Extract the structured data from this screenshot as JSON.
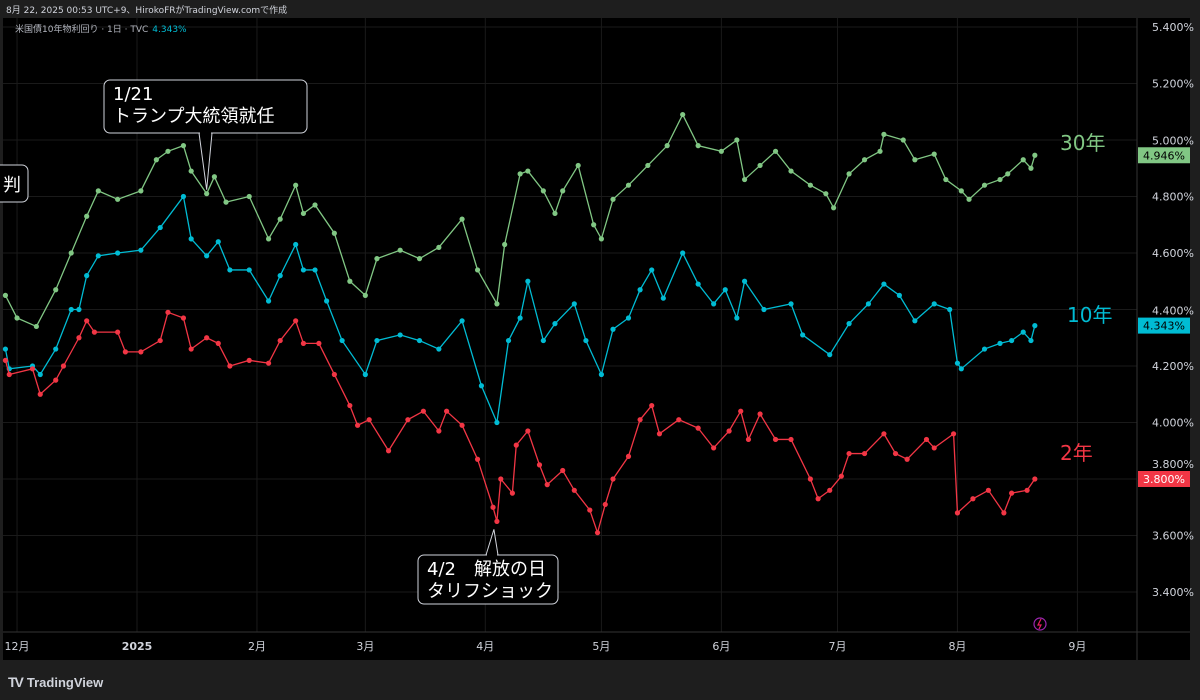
{
  "header": {
    "caption": "8月 22, 2025 00:53 UTC+9、HirokoFRがTradingView.comで作成"
  },
  "legend": {
    "symbol": "米国債10年物利回り · 1日 · TVC",
    "value": "4.343%"
  },
  "footer": {
    "brand": "TradingView",
    "logo_mark": "TV"
  },
  "icons": {
    "lightning": "lightning-icon"
  },
  "colors": {
    "y30": "#81c784",
    "y10": "#00bcd4",
    "y2": "#f23645",
    "background": "#000000",
    "grid": "#1a1a1a"
  },
  "chart_data": {
    "type": "line",
    "title": "",
    "ylim": [
      3.3,
      5.45
    ],
    "y_ticks": [
      "5.400%",
      "5.200%",
      "5.000%",
      "4.800%",
      "4.600%",
      "4.400%",
      "4.200%",
      "4.000%",
      "3.800%",
      "3.600%",
      "3.400%"
    ],
    "y_tick_values": [
      5.4,
      5.2,
      5.0,
      4.8,
      4.6,
      4.4,
      4.2,
      4.0,
      3.8,
      3.6,
      3.4
    ],
    "x_ticks": [
      {
        "label": "12月",
        "date": "2024-12-01"
      },
      {
        "label": "2025",
        "date": "2025-01-01"
      },
      {
        "label": "2月",
        "date": "2025-02-01"
      },
      {
        "label": "3月",
        "date": "2025-03-01"
      },
      {
        "label": "4月",
        "date": "2025-04-01"
      },
      {
        "label": "5月",
        "date": "2025-05-01"
      },
      {
        "label": "6月",
        "date": "2025-06-01"
      },
      {
        "label": "7月",
        "date": "2025-07-01"
      },
      {
        "label": "8月",
        "date": "2025-08-01"
      },
      {
        "label": "9月",
        "date": "2025-09-01"
      }
    ],
    "grid": true,
    "series": [
      {
        "name": "30年",
        "color": "#81c784",
        "last_value": "4.946%",
        "points": [
          [
            "2024-11-28",
            4.45
          ],
          [
            "2024-12-01",
            4.37
          ],
          [
            "2024-12-06",
            4.34
          ],
          [
            "2024-12-11",
            4.47
          ],
          [
            "2024-12-15",
            4.6
          ],
          [
            "2024-12-19",
            4.73
          ],
          [
            "2024-12-22",
            4.82
          ],
          [
            "2024-12-27",
            4.79
          ],
          [
            "2025-01-02",
            4.82
          ],
          [
            "2025-01-06",
            4.93
          ],
          [
            "2025-01-09",
            4.96
          ],
          [
            "2025-01-13",
            4.98
          ],
          [
            "2025-01-15",
            4.89
          ],
          [
            "2025-01-19",
            4.81
          ],
          [
            "2025-01-21",
            4.87
          ],
          [
            "2025-01-24",
            4.78
          ],
          [
            "2025-01-30",
            4.8
          ],
          [
            "2025-02-04",
            4.65
          ],
          [
            "2025-02-07",
            4.72
          ],
          [
            "2025-02-11",
            4.84
          ],
          [
            "2025-02-13",
            4.74
          ],
          [
            "2025-02-16",
            4.77
          ],
          [
            "2025-02-21",
            4.67
          ],
          [
            "2025-02-25",
            4.5
          ],
          [
            "2025-03-01",
            4.45
          ],
          [
            "2025-03-04",
            4.58
          ],
          [
            "2025-03-10",
            4.61
          ],
          [
            "2025-03-15",
            4.58
          ],
          [
            "2025-03-20",
            4.62
          ],
          [
            "2025-03-26",
            4.72
          ],
          [
            "2025-03-30",
            4.54
          ],
          [
            "2025-04-04",
            4.42
          ],
          [
            "2025-04-06",
            4.63
          ],
          [
            "2025-04-10",
            4.88
          ],
          [
            "2025-04-12",
            4.89
          ],
          [
            "2025-04-16",
            4.82
          ],
          [
            "2025-04-19",
            4.74
          ],
          [
            "2025-04-21",
            4.82
          ],
          [
            "2025-04-25",
            4.91
          ],
          [
            "2025-04-29",
            4.7
          ],
          [
            "2025-05-01",
            4.65
          ],
          [
            "2025-05-04",
            4.79
          ],
          [
            "2025-05-08",
            4.84
          ],
          [
            "2025-05-13",
            4.91
          ],
          [
            "2025-05-18",
            4.98
          ],
          [
            "2025-05-22",
            5.09
          ],
          [
            "2025-05-26",
            4.98
          ],
          [
            "2025-06-01",
            4.96
          ],
          [
            "2025-06-05",
            5.0
          ],
          [
            "2025-06-07",
            4.86
          ],
          [
            "2025-06-11",
            4.91
          ],
          [
            "2025-06-15",
            4.96
          ],
          [
            "2025-06-19",
            4.89
          ],
          [
            "2025-06-24",
            4.84
          ],
          [
            "2025-06-28",
            4.81
          ],
          [
            "2025-06-30",
            4.76
          ],
          [
            "2025-07-04",
            4.88
          ],
          [
            "2025-07-08",
            4.93
          ],
          [
            "2025-07-12",
            4.96
          ],
          [
            "2025-07-13",
            5.02
          ],
          [
            "2025-07-18",
            5.0
          ],
          [
            "2025-07-21",
            4.93
          ],
          [
            "2025-07-26",
            4.95
          ],
          [
            "2025-07-29",
            4.86
          ],
          [
            "2025-08-02",
            4.82
          ],
          [
            "2025-08-04",
            4.79
          ],
          [
            "2025-08-08",
            4.84
          ],
          [
            "2025-08-12",
            4.86
          ],
          [
            "2025-08-14",
            4.88
          ],
          [
            "2025-08-18",
            4.93
          ],
          [
            "2025-08-20",
            4.9
          ],
          [
            "2025-08-21",
            4.946
          ]
        ]
      },
      {
        "name": "10年",
        "color": "#00bcd4",
        "last_value": "4.343%",
        "points": [
          [
            "2024-11-28",
            4.26
          ],
          [
            "2024-11-29",
            4.19
          ],
          [
            "2024-12-05",
            4.2
          ],
          [
            "2024-12-07",
            4.17
          ],
          [
            "2024-12-11",
            4.26
          ],
          [
            "2024-12-15",
            4.4
          ],
          [
            "2024-12-17",
            4.4
          ],
          [
            "2024-12-19",
            4.52
          ],
          [
            "2024-12-22",
            4.59
          ],
          [
            "2024-12-27",
            4.6
          ],
          [
            "2025-01-02",
            4.61
          ],
          [
            "2025-01-07",
            4.69
          ],
          [
            "2025-01-13",
            4.8
          ],
          [
            "2025-01-15",
            4.65
          ],
          [
            "2025-01-19",
            4.59
          ],
          [
            "2025-01-22",
            4.64
          ],
          [
            "2025-01-25",
            4.54
          ],
          [
            "2025-01-30",
            4.54
          ],
          [
            "2025-02-04",
            4.43
          ],
          [
            "2025-02-07",
            4.52
          ],
          [
            "2025-02-11",
            4.63
          ],
          [
            "2025-02-13",
            4.54
          ],
          [
            "2025-02-16",
            4.54
          ],
          [
            "2025-02-19",
            4.43
          ],
          [
            "2025-02-23",
            4.29
          ],
          [
            "2025-03-01",
            4.17
          ],
          [
            "2025-03-04",
            4.29
          ],
          [
            "2025-03-10",
            4.31
          ],
          [
            "2025-03-15",
            4.29
          ],
          [
            "2025-03-20",
            4.26
          ],
          [
            "2025-03-26",
            4.36
          ],
          [
            "2025-03-31",
            4.13
          ],
          [
            "2025-04-04",
            4.0
          ],
          [
            "2025-04-07",
            4.29
          ],
          [
            "2025-04-10",
            4.37
          ],
          [
            "2025-04-12",
            4.5
          ],
          [
            "2025-04-16",
            4.29
          ],
          [
            "2025-04-19",
            4.35
          ],
          [
            "2025-04-24",
            4.42
          ],
          [
            "2025-04-27",
            4.29
          ],
          [
            "2025-05-01",
            4.17
          ],
          [
            "2025-05-04",
            4.33
          ],
          [
            "2025-05-08",
            4.37
          ],
          [
            "2025-05-11",
            4.47
          ],
          [
            "2025-05-14",
            4.54
          ],
          [
            "2025-05-17",
            4.44
          ],
          [
            "2025-05-22",
            4.6
          ],
          [
            "2025-05-26",
            4.49
          ],
          [
            "2025-05-30",
            4.42
          ],
          [
            "2025-06-02",
            4.47
          ],
          [
            "2025-06-05",
            4.37
          ],
          [
            "2025-06-07",
            4.5
          ],
          [
            "2025-06-12",
            4.4
          ],
          [
            "2025-06-19",
            4.42
          ],
          [
            "2025-06-22",
            4.31
          ],
          [
            "2025-06-29",
            4.24
          ],
          [
            "2025-07-04",
            4.35
          ],
          [
            "2025-07-09",
            4.42
          ],
          [
            "2025-07-13",
            4.49
          ],
          [
            "2025-07-17",
            4.45
          ],
          [
            "2025-07-21",
            4.36
          ],
          [
            "2025-07-26",
            4.42
          ],
          [
            "2025-07-30",
            4.4
          ],
          [
            "2025-08-01",
            4.21
          ],
          [
            "2025-08-02",
            4.19
          ],
          [
            "2025-08-08",
            4.26
          ],
          [
            "2025-08-12",
            4.28
          ],
          [
            "2025-08-15",
            4.29
          ],
          [
            "2025-08-18",
            4.32
          ],
          [
            "2025-08-20",
            4.29
          ],
          [
            "2025-08-21",
            4.343
          ]
        ]
      },
      {
        "name": "2年",
        "color": "#f23645",
        "last_value": "3.800%",
        "points": [
          [
            "2024-11-28",
            4.22
          ],
          [
            "2024-11-29",
            4.17
          ],
          [
            "2024-12-05",
            4.19
          ],
          [
            "2024-12-07",
            4.1
          ],
          [
            "2024-12-11",
            4.15
          ],
          [
            "2024-12-13",
            4.2
          ],
          [
            "2024-12-17",
            4.3
          ],
          [
            "2024-12-19",
            4.36
          ],
          [
            "2024-12-21",
            4.32
          ],
          [
            "2024-12-27",
            4.32
          ],
          [
            "2024-12-29",
            4.25
          ],
          [
            "2025-01-02",
            4.25
          ],
          [
            "2025-01-07",
            4.29
          ],
          [
            "2025-01-09",
            4.39
          ],
          [
            "2025-01-13",
            4.37
          ],
          [
            "2025-01-15",
            4.26
          ],
          [
            "2025-01-19",
            4.3
          ],
          [
            "2025-01-22",
            4.28
          ],
          [
            "2025-01-25",
            4.2
          ],
          [
            "2025-01-30",
            4.22
          ],
          [
            "2025-02-04",
            4.21
          ],
          [
            "2025-02-07",
            4.29
          ],
          [
            "2025-02-11",
            4.36
          ],
          [
            "2025-02-13",
            4.28
          ],
          [
            "2025-02-17",
            4.28
          ],
          [
            "2025-02-21",
            4.17
          ],
          [
            "2025-02-25",
            4.06
          ],
          [
            "2025-02-27",
            3.99
          ],
          [
            "2025-03-02",
            4.01
          ],
          [
            "2025-03-07",
            3.9
          ],
          [
            "2025-03-12",
            4.01
          ],
          [
            "2025-03-16",
            4.04
          ],
          [
            "2025-03-20",
            3.97
          ],
          [
            "2025-03-22",
            4.04
          ],
          [
            "2025-03-26",
            3.99
          ],
          [
            "2025-03-30",
            3.87
          ],
          [
            "2025-04-03",
            3.7
          ],
          [
            "2025-04-04",
            3.65
          ],
          [
            "2025-04-05",
            3.8
          ],
          [
            "2025-04-08",
            3.75
          ],
          [
            "2025-04-09",
            3.92
          ],
          [
            "2025-04-12",
            3.97
          ],
          [
            "2025-04-15",
            3.85
          ],
          [
            "2025-04-17",
            3.78
          ],
          [
            "2025-04-21",
            3.83
          ],
          [
            "2025-04-24",
            3.76
          ],
          [
            "2025-04-28",
            3.69
          ],
          [
            "2025-04-30",
            3.61
          ],
          [
            "2025-05-02",
            3.71
          ],
          [
            "2025-05-04",
            3.8
          ],
          [
            "2025-05-08",
            3.88
          ],
          [
            "2025-05-11",
            4.01
          ],
          [
            "2025-05-14",
            4.06
          ],
          [
            "2025-05-16",
            3.96
          ],
          [
            "2025-05-21",
            4.01
          ],
          [
            "2025-05-26",
            3.98
          ],
          [
            "2025-05-30",
            3.91
          ],
          [
            "2025-06-03",
            3.97
          ],
          [
            "2025-06-06",
            4.04
          ],
          [
            "2025-06-08",
            3.94
          ],
          [
            "2025-06-11",
            4.03
          ],
          [
            "2025-06-15",
            3.94
          ],
          [
            "2025-06-19",
            3.94
          ],
          [
            "2025-06-24",
            3.8
          ],
          [
            "2025-06-26",
            3.73
          ],
          [
            "2025-06-29",
            3.76
          ],
          [
            "2025-07-02",
            3.81
          ],
          [
            "2025-07-04",
            3.89
          ],
          [
            "2025-07-08",
            3.89
          ],
          [
            "2025-07-13",
            3.96
          ],
          [
            "2025-07-16",
            3.89
          ],
          [
            "2025-07-19",
            3.87
          ],
          [
            "2025-07-24",
            3.94
          ],
          [
            "2025-07-26",
            3.91
          ],
          [
            "2025-07-31",
            3.96
          ],
          [
            "2025-08-01",
            3.68
          ],
          [
            "2025-08-05",
            3.73
          ],
          [
            "2025-08-09",
            3.76
          ],
          [
            "2025-08-13",
            3.68
          ],
          [
            "2025-08-15",
            3.75
          ],
          [
            "2025-08-19",
            3.76
          ],
          [
            "2025-08-21",
            3.8
          ]
        ]
      }
    ],
    "annotations": [
      {
        "lines": [
          "1/21",
          "トランプ大統領就任"
        ],
        "date": "2025-01-19",
        "value": 4.81
      },
      {
        "lines": [
          "4/2　解放の日",
          "タリフショック"
        ],
        "date": "2025-04-04",
        "value": 3.65
      },
      {
        "lines": [
          "判"
        ]
      }
    ]
  }
}
